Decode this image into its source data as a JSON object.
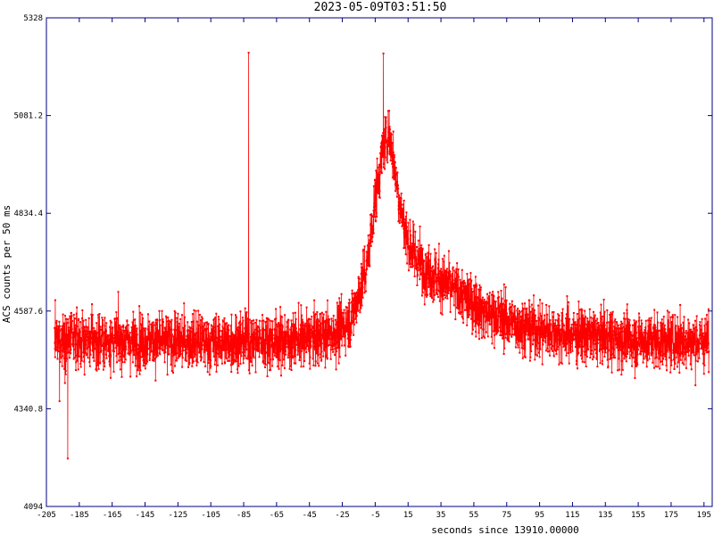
{
  "chart_data": {
    "type": "line",
    "title": "2023-05-09T03:51:50",
    "xlabel": "seconds since 13910.00000",
    "ylabel": "ACS counts per 50 ms",
    "xlim": [
      -205,
      200
    ],
    "ylim": [
      4094,
      5328
    ],
    "x_ticks": [
      -205,
      -185,
      -165,
      -145,
      -125,
      -105,
      -85,
      -65,
      -45,
      -25,
      -5,
      15,
      35,
      55,
      75,
      95,
      115,
      135,
      155,
      175,
      195
    ],
    "y_ticks": [
      4094,
      4340.8,
      4587.6,
      4834.4,
      5081.2,
      5328
    ],
    "y_tick_labels": [
      "4094",
      "4340.8",
      "4587.6",
      "4834.4",
      "5081.2",
      "5328"
    ],
    "grid": false,
    "series": [
      {
        "color": "#ff0000",
        "profile_x": [
          -200,
          -150,
          -100,
          -50,
          -30,
          -20,
          -10,
          -5,
          0,
          3,
          5,
          10,
          15,
          20,
          30,
          40,
          50,
          60,
          80,
          100,
          150,
          198
        ],
        "profile_y": [
          4515,
          4512,
          4510,
          4515,
          4530,
          4565,
          4700,
          4870,
          5000,
          5040,
          5000,
          4860,
          4760,
          4720,
          4680,
          4650,
          4620,
          4590,
          4555,
          4535,
          4515,
          4510
        ],
        "spikes_x": [
          -82,
          0,
          -197,
          -192
        ],
        "spikes_y": [
          5240,
          5238,
          4360,
          4215
        ]
      }
    ]
  }
}
